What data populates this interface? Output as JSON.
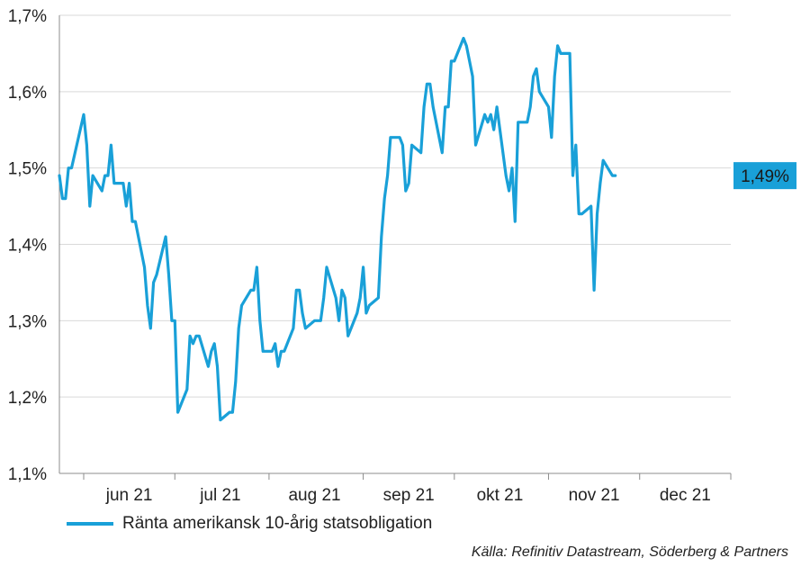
{
  "chart_data": {
    "type": "line",
    "title": "",
    "xlabel": "",
    "ylabel": "",
    "ylim": [
      1.1,
      1.7
    ],
    "yticks": [
      {
        "value": 1.1,
        "label": "1,1%"
      },
      {
        "value": 1.2,
        "label": "1,2%"
      },
      {
        "value": 1.3,
        "label": "1,3%"
      },
      {
        "value": 1.4,
        "label": "1,4%"
      },
      {
        "value": 1.5,
        "label": "1,5%"
      },
      {
        "value": 1.6,
        "label": "1,6%"
      },
      {
        "value": 1.7,
        "label": "1,7%"
      }
    ],
    "xlim": [
      "2021-05-24",
      "2021-12-31"
    ],
    "month_boundaries": [
      "2021-06-01",
      "2021-07-01",
      "2021-08-01",
      "2021-09-01",
      "2021-10-01",
      "2021-11-01",
      "2021-12-01",
      "2021-12-31"
    ],
    "month_labels": [
      "jun 21",
      "jul 21",
      "aug 21",
      "sep 21",
      "okt 21",
      "nov 21",
      "dec 21"
    ],
    "grid": true,
    "legend_position": "bottom-left",
    "end_label": "1,49%",
    "series": [
      {
        "name": "Ränta amerikansk 10-årig statsobligation",
        "color": "#19a0d8",
        "points": [
          [
            "2021-05-24",
            1.49
          ],
          [
            "2021-05-25",
            1.46
          ],
          [
            "2021-05-26",
            1.46
          ],
          [
            "2021-05-27",
            1.5
          ],
          [
            "2021-05-28",
            1.5
          ],
          [
            "2021-06-01",
            1.57
          ],
          [
            "2021-06-02",
            1.53
          ],
          [
            "2021-06-03",
            1.45
          ],
          [
            "2021-06-04",
            1.49
          ],
          [
            "2021-06-07",
            1.47
          ],
          [
            "2021-06-08",
            1.49
          ],
          [
            "2021-06-09",
            1.49
          ],
          [
            "2021-06-10",
            1.53
          ],
          [
            "2021-06-11",
            1.48
          ],
          [
            "2021-06-14",
            1.48
          ],
          [
            "2021-06-15",
            1.45
          ],
          [
            "2021-06-16",
            1.48
          ],
          [
            "2021-06-17",
            1.43
          ],
          [
            "2021-06-18",
            1.43
          ],
          [
            "2021-06-21",
            1.37
          ],
          [
            "2021-06-22",
            1.32
          ],
          [
            "2021-06-23",
            1.29
          ],
          [
            "2021-06-24",
            1.35
          ],
          [
            "2021-06-25",
            1.36
          ],
          [
            "2021-06-28",
            1.41
          ],
          [
            "2021-06-29",
            1.36
          ],
          [
            "2021-06-30",
            1.3
          ],
          [
            "2021-07-01",
            1.3
          ],
          [
            "2021-07-02",
            1.18
          ],
          [
            "2021-07-05",
            1.21
          ],
          [
            "2021-07-06",
            1.28
          ],
          [
            "2021-07-07",
            1.27
          ],
          [
            "2021-07-08",
            1.28
          ],
          [
            "2021-07-09",
            1.28
          ],
          [
            "2021-07-12",
            1.24
          ],
          [
            "2021-07-13",
            1.26
          ],
          [
            "2021-07-14",
            1.27
          ],
          [
            "2021-07-15",
            1.24
          ],
          [
            "2021-07-16",
            1.17
          ],
          [
            "2021-07-19",
            1.18
          ],
          [
            "2021-07-20",
            1.18
          ],
          [
            "2021-07-21",
            1.22
          ],
          [
            "2021-07-22",
            1.29
          ],
          [
            "2021-07-23",
            1.32
          ],
          [
            "2021-07-26",
            1.34
          ],
          [
            "2021-07-27",
            1.34
          ],
          [
            "2021-07-28",
            1.37
          ],
          [
            "2021-07-29",
            1.3
          ],
          [
            "2021-07-30",
            1.26
          ],
          [
            "2021-08-02",
            1.26
          ],
          [
            "2021-08-03",
            1.27
          ],
          [
            "2021-08-04",
            1.24
          ],
          [
            "2021-08-05",
            1.26
          ],
          [
            "2021-08-06",
            1.26
          ],
          [
            "2021-08-09",
            1.29
          ],
          [
            "2021-08-10",
            1.34
          ],
          [
            "2021-08-11",
            1.34
          ],
          [
            "2021-08-12",
            1.31
          ],
          [
            "2021-08-13",
            1.29
          ],
          [
            "2021-08-16",
            1.3
          ],
          [
            "2021-08-17",
            1.3
          ],
          [
            "2021-08-18",
            1.3
          ],
          [
            "2021-08-19",
            1.33
          ],
          [
            "2021-08-20",
            1.37
          ],
          [
            "2021-08-23",
            1.33
          ],
          [
            "2021-08-24",
            1.3
          ],
          [
            "2021-08-25",
            1.34
          ],
          [
            "2021-08-26",
            1.33
          ],
          [
            "2021-08-27",
            1.28
          ],
          [
            "2021-08-30",
            1.31
          ],
          [
            "2021-08-31",
            1.33
          ],
          [
            "2021-09-01",
            1.37
          ],
          [
            "2021-09-02",
            1.31
          ],
          [
            "2021-09-03",
            1.32
          ],
          [
            "2021-09-06",
            1.33
          ],
          [
            "2021-09-07",
            1.41
          ],
          [
            "2021-09-08",
            1.46
          ],
          [
            "2021-09-09",
            1.49
          ],
          [
            "2021-09-10",
            1.54
          ],
          [
            "2021-09-13",
            1.54
          ],
          [
            "2021-09-14",
            1.53
          ],
          [
            "2021-09-15",
            1.47
          ],
          [
            "2021-09-16",
            1.48
          ],
          [
            "2021-09-17",
            1.53
          ],
          [
            "2021-09-20",
            1.52
          ],
          [
            "2021-09-21",
            1.58
          ],
          [
            "2021-09-22",
            1.61
          ],
          [
            "2021-09-23",
            1.61
          ],
          [
            "2021-09-24",
            1.58
          ],
          [
            "2021-09-27",
            1.52
          ],
          [
            "2021-09-28",
            1.58
          ],
          [
            "2021-09-29",
            1.58
          ],
          [
            "2021-09-30",
            1.64
          ],
          [
            "2021-10-01",
            1.64
          ],
          [
            "2021-10-04",
            1.67
          ],
          [
            "2021-10-05",
            1.66
          ],
          [
            "2021-10-06",
            1.64
          ],
          [
            "2021-10-07",
            1.62
          ],
          [
            "2021-10-08",
            1.53
          ],
          [
            "2021-10-11",
            1.57
          ],
          [
            "2021-10-12",
            1.56
          ],
          [
            "2021-10-13",
            1.57
          ],
          [
            "2021-10-14",
            1.55
          ],
          [
            "2021-10-15",
            1.58
          ],
          [
            "2021-10-18",
            1.49
          ],
          [
            "2021-10-19",
            1.47
          ],
          [
            "2021-10-20",
            1.5
          ],
          [
            "2021-10-21",
            1.43
          ],
          [
            "2021-10-22",
            1.56
          ],
          [
            "2021-10-25",
            1.56
          ],
          [
            "2021-10-26",
            1.58
          ],
          [
            "2021-10-27",
            1.62
          ],
          [
            "2021-10-28",
            1.63
          ],
          [
            "2021-10-29",
            1.6
          ],
          [
            "2021-11-01",
            1.58
          ],
          [
            "2021-11-02",
            1.54
          ],
          [
            "2021-11-03",
            1.62
          ],
          [
            "2021-11-04",
            1.66
          ],
          [
            "2021-11-05",
            1.65
          ],
          [
            "2021-11-08",
            1.65
          ],
          [
            "2021-11-09",
            1.49
          ],
          [
            "2021-11-10",
            1.53
          ],
          [
            "2021-11-11",
            1.44
          ],
          [
            "2021-11-12",
            1.44
          ],
          [
            "2021-11-15",
            1.45
          ],
          [
            "2021-11-16",
            1.34
          ],
          [
            "2021-11-17",
            1.44
          ],
          [
            "2021-11-18",
            1.48
          ],
          [
            "2021-11-19",
            1.51
          ],
          [
            "2021-11-22",
            1.49
          ],
          [
            "2021-11-23",
            1.49
          ]
        ]
      }
    ]
  },
  "legend": {
    "label": "Ränta amerikansk 10-årig statsobligation"
  },
  "source": "Källa: Refinitiv Datastream, Söderberg & Partners"
}
